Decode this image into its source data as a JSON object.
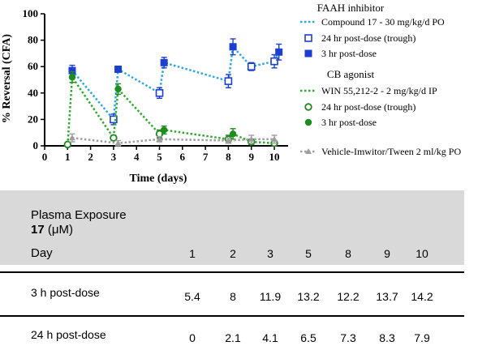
{
  "chart_data": {
    "type": "line",
    "xlabel": "Time (days)",
    "ylabel": "% Reversal (CFA)",
    "xlim": [
      0,
      10.6
    ],
    "ylim": [
      0,
      100
    ],
    "xticks": [
      0,
      1,
      2,
      3,
      4,
      5,
      6,
      7,
      8,
      9,
      10
    ],
    "yticks": [
      0,
      20,
      40,
      60,
      80,
      100
    ],
    "legend_position": "top-right",
    "legend_groups": [
      {
        "heading": "FAAH inhibitor",
        "items": [
          {
            "label": "Compound 17 - 30 mg/kg/d PO",
            "kind": "dotted-line",
            "color": "#29a9e1"
          },
          {
            "label": "24 hr post-dose (trough)",
            "kind": "open-square",
            "color": "#1c3fd0"
          },
          {
            "label": "3 hr post-dose",
            "kind": "filled-square",
            "color": "#1c3fd0"
          }
        ]
      },
      {
        "heading": "CB agonist",
        "items": [
          {
            "label": "WIN 55,212-2 - 2 mg/kg/d IP",
            "kind": "dotted-line",
            "color": "#2eab2e"
          },
          {
            "label": "24 hr post-dose (trough)",
            "kind": "open-circle",
            "color": "#1e8c1e"
          },
          {
            "label": "3 hr post-dose",
            "kind": "filled-circle",
            "color": "#1e8c1e"
          }
        ]
      },
      {
        "heading": "",
        "items": [
          {
            "label": "Vehicle-Imwitor/Tween 2 ml/kg PO",
            "kind": "dotted-triangle",
            "color": "#9e9e9e"
          }
        ]
      }
    ],
    "series": [
      {
        "name": "Compound 17 - 30 mg/kg/d PO",
        "color": "#29a9e1",
        "x": [
          1.2,
          3,
          3.2,
          5,
          5.2,
          8,
          8.2,
          9,
          10,
          10.2
        ],
        "y": [
          57,
          20,
          58,
          40,
          63,
          49,
          75,
          60,
          64,
          71
        ],
        "err": [
          4,
          4,
          2,
          4,
          4,
          5,
          6,
          3,
          5,
          6
        ],
        "markers": [
          "filled-square",
          "open-square",
          "filled-square",
          "open-square",
          "filled-square",
          "open-square",
          "filled-square",
          "open-square",
          "open-square",
          "filled-square"
        ]
      },
      {
        "name": "WIN 55,212-2 - 2 mg/kg/d IP",
        "color": "#2eab2e",
        "x": [
          1,
          1.2,
          3,
          3.2,
          5,
          5.2,
          8,
          8.2,
          9,
          10
        ],
        "y": [
          1,
          52,
          6,
          43,
          9,
          12,
          5,
          9,
          3,
          2
        ],
        "err": [
          1,
          4,
          2,
          4,
          3,
          3,
          3,
          4,
          2,
          2
        ],
        "markers": [
          "open-circle",
          "filled-circle",
          "open-circle",
          "filled-circle",
          "open-circle",
          "filled-circle",
          "open-circle",
          "filled-circle",
          "open-circle",
          "open-circle"
        ]
      },
      {
        "name": "Vehicle-Imwitor/Tween 2 ml/kg PO",
        "color": "#9e9e9e",
        "x": [
          1.2,
          3.2,
          5,
          8,
          9,
          10
        ],
        "y": [
          6,
          2,
          5,
          4,
          5,
          5
        ],
        "err": [
          3,
          2,
          2,
          2,
          3,
          3
        ],
        "markers": [
          "triangle",
          "triangle",
          "triangle",
          "triangle",
          "triangle",
          "triangle"
        ]
      }
    ]
  },
  "table": {
    "title_line1": "Plasma Exposure",
    "title_bold": "17",
    "title_unit": " (μM)",
    "day_label": "Day",
    "days": [
      "1",
      "2",
      "3",
      "5",
      "8",
      "9",
      "10"
    ],
    "rows": [
      {
        "label": "3 h post-dose",
        "values": [
          "5.4",
          "8",
          "11.9",
          "13.2",
          "12.2",
          "13.7",
          "14.2"
        ]
      },
      {
        "label": "24 h post-dose",
        "values": [
          "0",
          "2.1",
          "4.1",
          "6.5",
          "7.3",
          "8.3",
          "7.9"
        ]
      }
    ]
  }
}
